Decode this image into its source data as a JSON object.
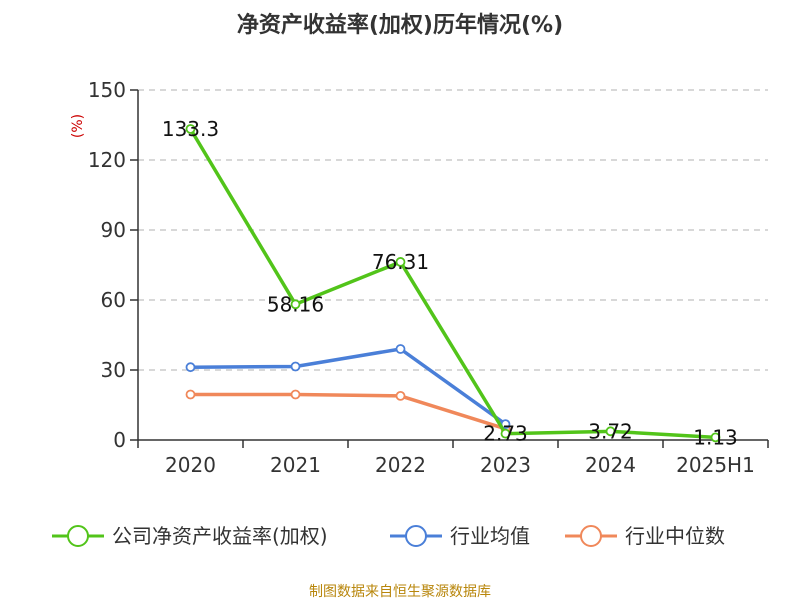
{
  "chart_data": {
    "type": "line",
    "title": "净资产收益率(加权)历年情况(%)",
    "unit_label": "(%)",
    "categories": [
      "2020",
      "2021",
      "2022",
      "2023",
      "2024",
      "2025H1"
    ],
    "ylim": [
      0,
      150
    ],
    "yticks": [
      0,
      30,
      60,
      90,
      120,
      150
    ],
    "grid": true,
    "legend_position": "bottom",
    "series": [
      {
        "name": "公司净资产收益率(加权)",
        "color": "#52c41a",
        "values": [
          133.3,
          58.16,
          76.31,
          2.73,
          3.72,
          1.13
        ],
        "labels": [
          "133.3",
          "58.16",
          "76.31",
          "2.73",
          "3.72",
          "1.13"
        ]
      },
      {
        "name": "行业均值",
        "color": "#4a7fd8",
        "values": [
          31.2,
          31.5,
          39.0,
          6.8,
          null,
          null
        ]
      },
      {
        "name": "行业中位数",
        "color": "#f0885a",
        "values": [
          19.5,
          19.5,
          18.9,
          4.8,
          null,
          null
        ]
      }
    ]
  },
  "footer": "制图数据来自恒生聚源数据库"
}
